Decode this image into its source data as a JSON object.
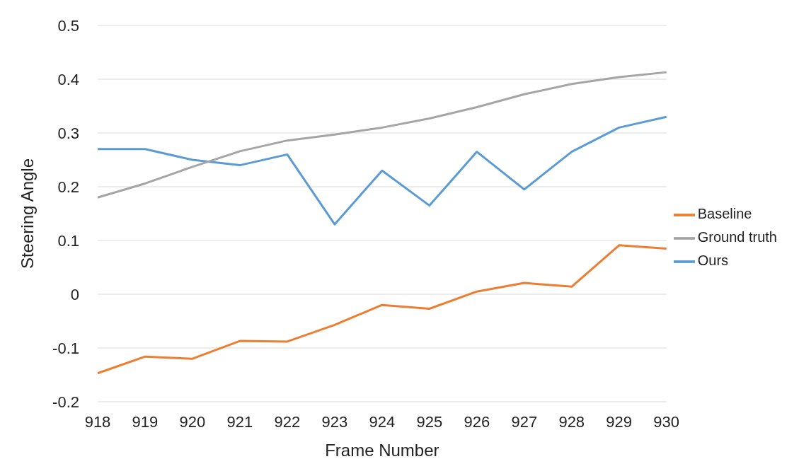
{
  "chart_data": {
    "type": "line",
    "xlabel": "Frame Number",
    "ylabel": "Steering Angle",
    "categories": [
      "918",
      "919",
      "920",
      "921",
      "922",
      "923",
      "924",
      "925",
      "926",
      "927",
      "928",
      "929",
      "930"
    ],
    "series": [
      {
        "name": "Ours",
        "color": "#5b9bd5",
        "values": [
          0.27,
          0.27,
          0.25,
          0.24,
          0.26,
          0.13,
          0.23,
          0.165,
          0.265,
          0.195,
          0.265,
          0.31,
          0.33
        ]
      },
      {
        "name": "Baseline",
        "color": "#ed7d31",
        "values": [
          -0.147,
          -0.116,
          -0.12,
          -0.087,
          -0.088,
          -0.057,
          -0.02,
          -0.027,
          0.005,
          0.021,
          0.014,
          0.091,
          0.085
        ]
      },
      {
        "name": "Ground truth",
        "color": "#a5a5a5",
        "values": [
          0.18,
          0.206,
          0.237,
          0.266,
          0.286,
          0.297,
          0.31,
          0.327,
          0.348,
          0.372,
          0.391,
          0.404,
          0.413
        ]
      }
    ],
    "ylim": [
      -0.2,
      0.5
    ],
    "yticks": [
      -0.2,
      -0.1,
      0,
      0.1,
      0.2,
      0.3,
      0.4,
      0.5
    ],
    "grid": "y",
    "legend": "right",
    "marker": "none",
    "line_style": "solid"
  }
}
